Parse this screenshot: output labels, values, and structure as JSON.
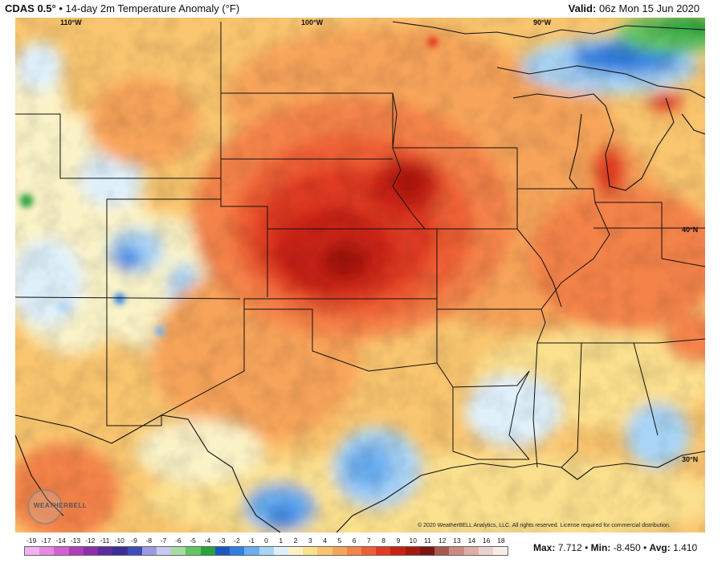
{
  "header": {
    "model": "CDAS 0.5°",
    "separator": "•",
    "product": "14-day 2m Temperature Anomaly (°F)",
    "valid_label": "Valid:",
    "valid_value": "06z Mon 15 Jun 2020"
  },
  "map": {
    "lon_labels": [
      "110°W",
      "100°W",
      "90°W"
    ],
    "lat_labels": [
      "40°N",
      "30°N"
    ],
    "copyright": "© 2020 WeatherBELL Analytics, LLC. All rights reserved. License required for commercial distribution.",
    "logo_text": "WEATHERBELL"
  },
  "legend": {
    "ticks": [
      "-19",
      "-17",
      "-14",
      "-13",
      "-12",
      "-11",
      "-10",
      "-9",
      "-8",
      "-7",
      "-6",
      "-5",
      "-4",
      "-3",
      "-2",
      "-1",
      "0",
      "1",
      "2",
      "3",
      "4",
      "5",
      "6",
      "7",
      "8",
      "9",
      "10",
      "11",
      "12",
      "13",
      "14",
      "16",
      "18"
    ],
    "colors": [
      "#f2b0f0",
      "#e58ae0",
      "#d35fd0",
      "#b13db8",
      "#8a2fa8",
      "#5b2ca0",
      "#3b2e9a",
      "#3c4fb8",
      "#9a9ae0",
      "#c9c9f0",
      "#a6dba6",
      "#62c462",
      "#27a43c",
      "#1a56c4",
      "#2f7fe0",
      "#6aaef0",
      "#a8d4f6",
      "#dff0fb",
      "#fbf3c8",
      "#fbe08e",
      "#f9c56f",
      "#f7a45a",
      "#f4834a",
      "#ee5f34",
      "#e03a22",
      "#c82215",
      "#a61710",
      "#7d1410",
      "#a85a50",
      "#c98b80",
      "#dcb0a6",
      "#ecd2cc",
      "#f7ece8"
    ]
  },
  "stats": {
    "max_label": "Max:",
    "max_value": "7.712",
    "min_label": "Min:",
    "min_value": "-8.450",
    "avg_label": "Avg:",
    "avg_value": "1.410",
    "sep": "•"
  }
}
